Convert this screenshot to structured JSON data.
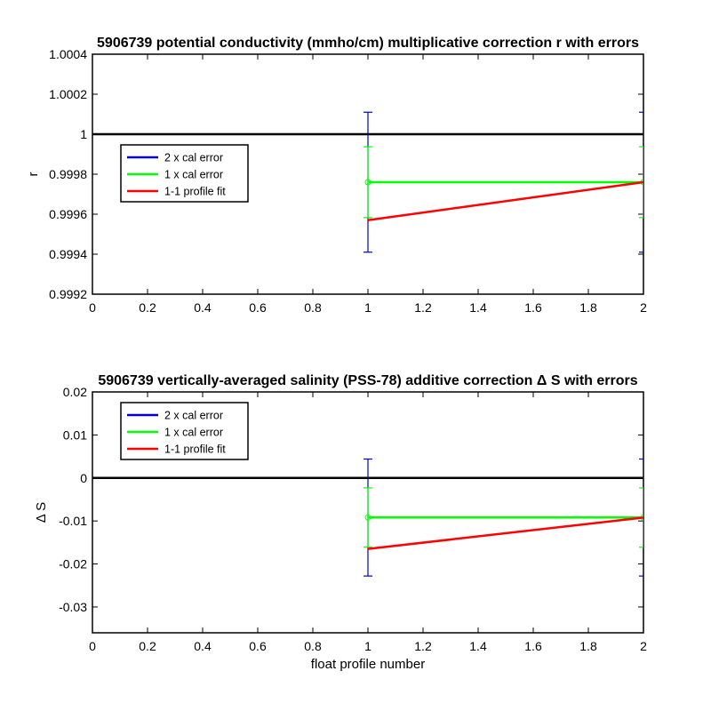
{
  "chart_data": [
    {
      "type": "line",
      "title": "5906739 potential conductivity (mmho/cm) multiplicative correction r with errors",
      "xlabel": "",
      "ylabel": "r",
      "xlim": [
        0,
        2
      ],
      "ylim": [
        0.9992,
        1.0004
      ],
      "xticks": [
        "0",
        "0.2",
        "0.4",
        "0.6",
        "0.8",
        "1",
        "1.2",
        "1.4",
        "1.6",
        "1.8",
        "2"
      ],
      "yticks": [
        "0.9992",
        "0.9994",
        "0.9996",
        "0.9998",
        "1",
        "1.0002",
        "1.0004"
      ],
      "grid": false,
      "legend_position": "upper-left",
      "reference_line": {
        "y": 1,
        "color": "#000000"
      },
      "series": [
        {
          "name": "2 x cal error",
          "color": "#0000cc",
          "x": [
            1,
            2
          ],
          "y": [
            0.99976,
            0.99976
          ],
          "err": [
            0.00035,
            0.00035
          ],
          "draw_line": false
        },
        {
          "name": "1 x cal error",
          "color": "#00ff00",
          "x": [
            1,
            2
          ],
          "y": [
            0.99976,
            0.99976
          ],
          "err": [
            0.000177,
            0.000177
          ],
          "draw_line": true
        },
        {
          "name": "1-1 profile fit",
          "color": "#ff0000",
          "x": [
            1,
            2
          ],
          "y": [
            0.99957,
            0.99976
          ],
          "draw_line": true
        }
      ]
    },
    {
      "type": "line",
      "title": "5906739 vertically-averaged salinity (PSS-78) additive correction Δ S with errors",
      "xlabel": "float profile number",
      "ylabel": "Δ S",
      "xlim": [
        0,
        2
      ],
      "ylim": [
        -0.036,
        0.02
      ],
      "xticks": [
        "0",
        "0.2",
        "0.4",
        "0.6",
        "0.8",
        "1",
        "1.2",
        "1.4",
        "1.6",
        "1.8",
        "2"
      ],
      "yticks": [
        "-0.03",
        "-0.02",
        "-0.01",
        "0",
        "0.01",
        "0.02"
      ],
      "grid": false,
      "legend_position": "upper-left",
      "reference_line": {
        "y": 0,
        "color": "#000000"
      },
      "series": [
        {
          "name": "2 x cal error",
          "color": "#0000cc",
          "x": [
            1,
            2
          ],
          "y": [
            -0.0092,
            -0.0092
          ],
          "err": [
            0.0136,
            0.0136
          ],
          "draw_line": false
        },
        {
          "name": "1 x cal error",
          "color": "#00ff00",
          "x": [
            1,
            2
          ],
          "y": [
            -0.0092,
            -0.0092
          ],
          "err": [
            0.0069,
            0.0069
          ],
          "draw_line": true
        },
        {
          "name": "1-1 profile fit",
          "color": "#ff0000",
          "x": [
            1,
            2
          ],
          "y": [
            -0.0165,
            -0.0092
          ],
          "draw_line": true
        }
      ]
    }
  ]
}
